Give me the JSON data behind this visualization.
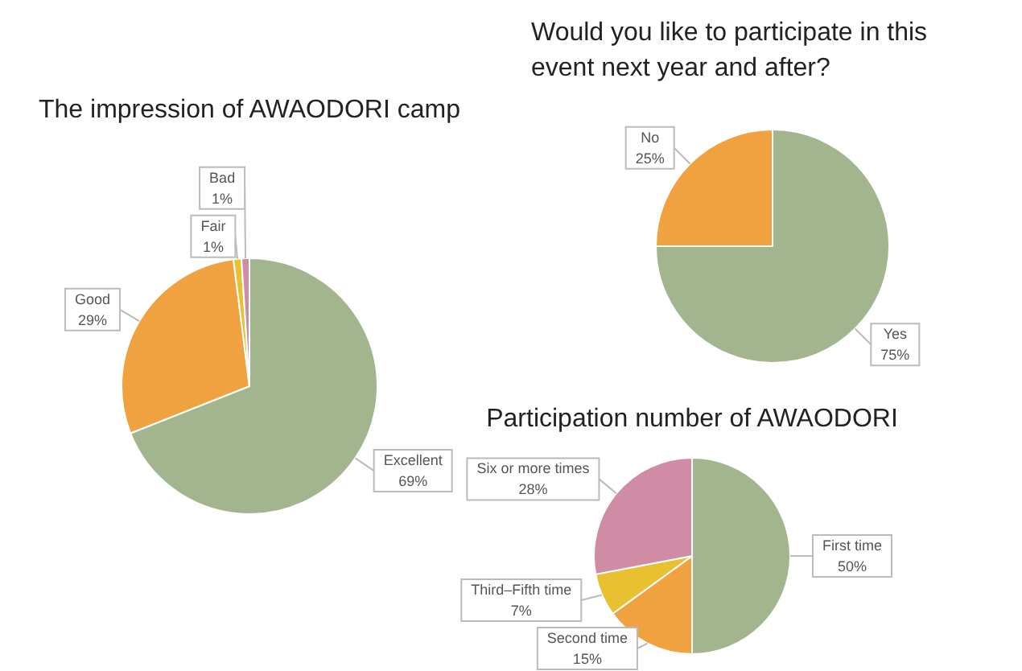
{
  "chart_data": [
    {
      "type": "pie",
      "title": "The impression of AWAODORI camp",
      "categories": [
        "Excellent",
        "Good",
        "Fair",
        "Bad"
      ],
      "values": [
        69,
        29,
        1,
        1
      ],
      "value_labels": [
        "69%",
        "29%",
        "1%",
        "1%"
      ],
      "colors": [
        "#a3b58f",
        "#f0a240",
        "#e8c030",
        "#d08ca4"
      ]
    },
    {
      "type": "pie",
      "title": "Would you like to participate in this event next year and after?",
      "categories": [
        "Yes",
        "No"
      ],
      "values": [
        75,
        25
      ],
      "value_labels": [
        "75%",
        "25%"
      ],
      "colors": [
        "#a3b58f",
        "#f0a240"
      ]
    },
    {
      "type": "pie",
      "title": "Participation number of AWAODORI",
      "categories": [
        "First time",
        "Second time",
        "Third–Fifth time",
        "Six or more times"
      ],
      "values": [
        50,
        15,
        7,
        28
      ],
      "value_labels": [
        "50%",
        "15%",
        "7%",
        "28%"
      ],
      "colors": [
        "#a3b58f",
        "#f0a240",
        "#e8c030",
        "#d08ca4"
      ]
    }
  ]
}
